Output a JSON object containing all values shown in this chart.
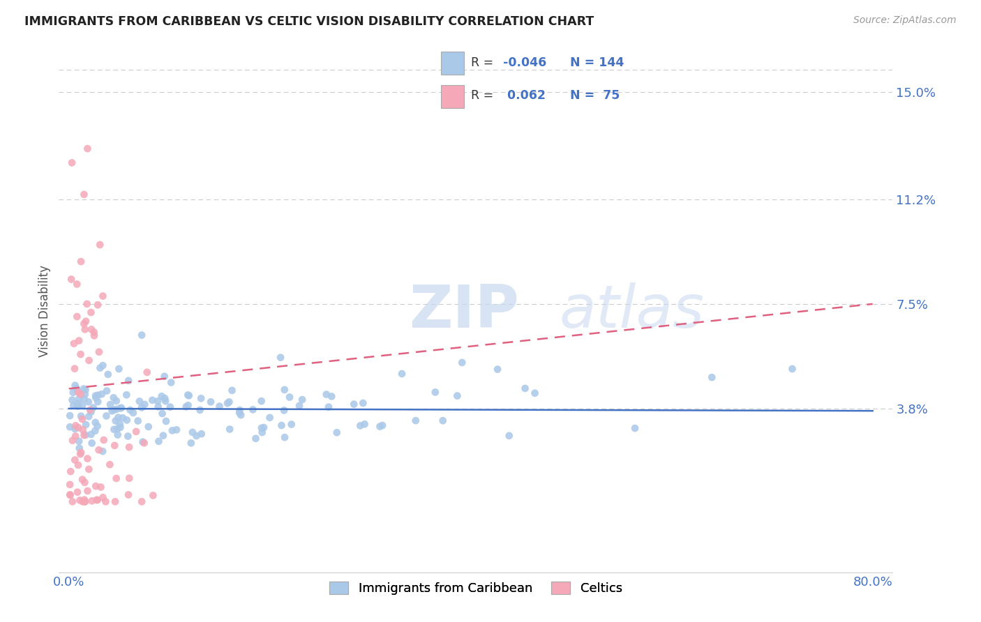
{
  "title": "IMMIGRANTS FROM CARIBBEAN VS CELTIC VISION DISABILITY CORRELATION CHART",
  "source": "Source: ZipAtlas.com",
  "ylabel": "Vision Disability",
  "xlim": [
    -0.01,
    0.82
  ],
  "ylim": [
    -0.02,
    0.165
  ],
  "yticks": [
    0.038,
    0.075,
    0.112,
    0.15
  ],
  "ytick_labels": [
    "3.8%",
    "7.5%",
    "11.2%",
    "15.0%"
  ],
  "legend_r_caribbean": "-0.046",
  "legend_n_caribbean": "144",
  "legend_r_celtics": "0.062",
  "legend_n_celtics": "75",
  "color_caribbean": "#aac8e8",
  "color_celtics": "#f4a8b8",
  "color_caribbean_line": "#4472c4",
  "color_celtics_line": "#e06080",
  "color_blue": "#4472c4",
  "color_axis_labels": "#4472c4",
  "background_color": "#ffffff",
  "watermark_zip": "ZIP",
  "watermark_atlas": "atlas",
  "grid_color": "#cccccc"
}
